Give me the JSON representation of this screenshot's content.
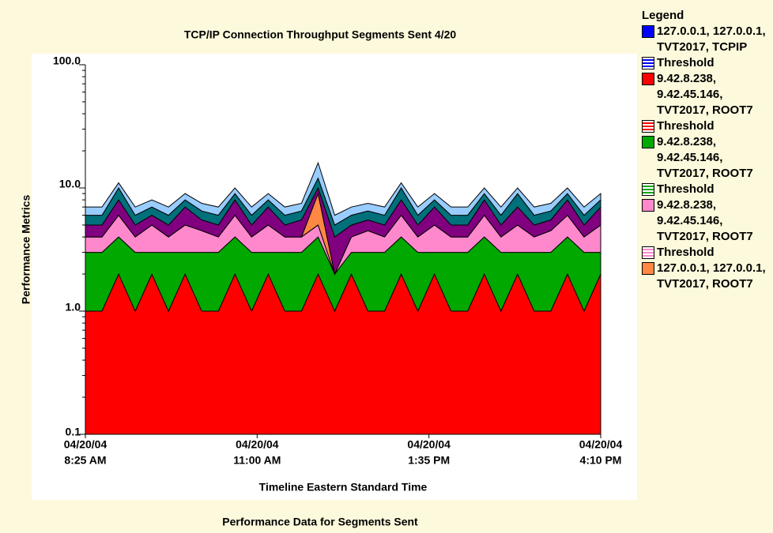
{
  "chart_data": {
    "type": "stacked-area",
    "title": "TCP/IP Connection Throughput Segments Sent 4/20",
    "subtitle": "Performance Data for Segments Sent",
    "x_label": "Timeline Eastern Standard Time",
    "y_label": "Performance Metrics",
    "log_scale": true,
    "ylim": [
      0.1,
      100
    ],
    "yticks": [
      {
        "value": 100,
        "label": "100.0"
      },
      {
        "value": 10,
        "label": "10.0"
      },
      {
        "value": 1,
        "label": "1.0"
      },
      0.1
    ],
    "xlim": [
      0,
      465
    ],
    "x_step": 15,
    "xticks": [
      {
        "value": 0,
        "label": [
          "04/20/04",
          "8:25 AM"
        ]
      },
      {
        "value": 155,
        "label": [
          "04/20/04",
          "11:00 AM"
        ]
      },
      {
        "value": 310,
        "label": [
          "04/20/04",
          "1:35 PM"
        ]
      },
      {
        "value": 465,
        "label": [
          "04/20/04",
          "4:10 PM"
        ]
      }
    ],
    "legend_title": "Legend",
    "series": [
      {
        "name": "127.0.0.1, 127.0.0.1, TVT2017, TCPIP",
        "color": "#0000ff",
        "threshold": "Threshold",
        "values": [
          0,
          0,
          0,
          0,
          0,
          0,
          0,
          0,
          0,
          0,
          0,
          0,
          0,
          0,
          0,
          0,
          0,
          0,
          0,
          0,
          0,
          0,
          0,
          0,
          0,
          0,
          0,
          0,
          0,
          0,
          0,
          0
        ]
      },
      {
        "name": "9.42.8.238, 9.42.45.146, TVT2017, ROOT7",
        "color": "#ff0000",
        "threshold": "Threshold",
        "values": [
          1,
          1,
          2,
          1,
          2,
          1,
          2,
          1,
          1,
          2,
          1,
          2,
          1,
          1,
          2,
          1,
          2,
          1,
          1,
          2,
          1,
          2,
          1,
          1,
          2,
          1,
          2,
          1,
          1,
          2,
          1,
          2
        ]
      },
      {
        "name": "9.42.8.238, 9.42.45.146, TVT2017, ROOT7",
        "color": "#00a800",
        "threshold": "Threshold",
        "values": [
          2,
          2,
          2,
          2,
          1,
          2,
          1,
          2,
          2,
          2,
          2,
          1,
          2,
          2,
          2,
          1,
          1,
          2,
          2,
          2,
          2,
          1,
          2,
          2,
          2,
          2,
          1,
          2,
          2,
          2,
          2,
          1
        ]
      },
      {
        "name": "9.42.8.238, 9.42.45.146, TVT2017, ROOT7",
        "color": "#ff88cc",
        "threshold": "Threshold",
        "values": [
          1,
          1,
          2,
          1,
          2,
          1,
          2,
          1.5,
          1,
          2,
          1,
          2,
          1,
          1,
          1,
          0,
          1,
          1.5,
          1,
          2,
          1,
          2,
          1,
          1,
          2,
          1,
          2,
          1,
          1.5,
          2,
          1,
          2
        ]
      },
      {
        "name": "127.0.0.1, 127.0.0.1, TVT2017, ROOT7",
        "color": "#ff8844",
        "values": [
          0,
          0,
          0,
          0,
          0,
          0,
          0,
          0,
          0,
          0,
          0,
          0,
          0,
          0,
          4,
          0,
          0,
          0,
          0,
          0,
          0,
          0,
          0,
          0,
          0,
          0,
          0,
          0,
          0,
          0,
          0,
          0
        ]
      },
      {
        "color": "#800080",
        "values": [
          1,
          1,
          2,
          1,
          1,
          1,
          2,
          1,
          1,
          2,
          1,
          2,
          1,
          1.5,
          1,
          2,
          1,
          1,
          1,
          2,
          1,
          2,
          1,
          1,
          2,
          1,
          2,
          1,
          1,
          2,
          1,
          2
        ]
      },
      {
        "color": "#00707a",
        "values": [
          1,
          1,
          2,
          1,
          1,
          1,
          1,
          1,
          1,
          1,
          1,
          1,
          1,
          1,
          2,
          1,
          1,
          1,
          1,
          2,
          1,
          1,
          1,
          1,
          1,
          1,
          2,
          1,
          1,
          1,
          1,
          1
        ]
      },
      {
        "color": "#99ccff",
        "values": [
          1,
          1,
          1,
          1,
          1,
          1,
          1,
          1,
          1,
          1,
          1,
          1,
          1,
          1,
          4,
          1,
          1,
          1,
          1,
          1,
          1,
          1,
          1,
          1,
          1,
          1,
          1,
          1,
          1,
          1,
          1,
          1
        ]
      }
    ]
  }
}
